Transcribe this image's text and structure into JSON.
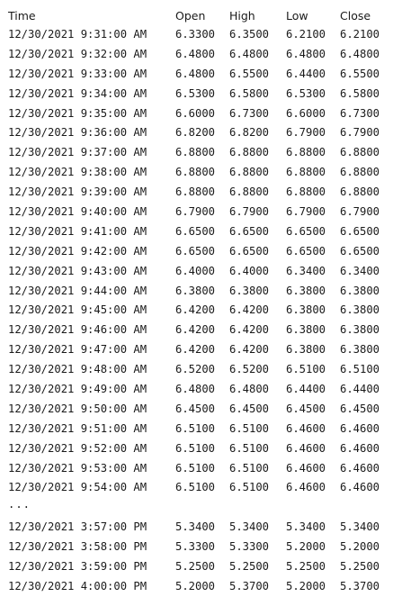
{
  "headers": [
    "Time",
    "Open",
    "High",
    "Low",
    "Close"
  ],
  "rows_top": [
    [
      "12/30/2021 9:31:00 AM",
      "6.3300",
      "6.3500",
      "6.2100",
      "6.2100"
    ],
    [
      "12/30/2021 9:32:00 AM",
      "6.4800",
      "6.4800",
      "6.4800",
      "6.4800"
    ],
    [
      "12/30/2021 9:33:00 AM",
      "6.4800",
      "6.5500",
      "6.4400",
      "6.5500"
    ],
    [
      "12/30/2021 9:34:00 AM",
      "6.5300",
      "6.5800",
      "6.5300",
      "6.5800"
    ],
    [
      "12/30/2021 9:35:00 AM",
      "6.6000",
      "6.7300",
      "6.6000",
      "6.7300"
    ],
    [
      "12/30/2021 9:36:00 AM",
      "6.8200",
      "6.8200",
      "6.7900",
      "6.7900"
    ],
    [
      "12/30/2021 9:37:00 AM",
      "6.8800",
      "6.8800",
      "6.8800",
      "6.8800"
    ],
    [
      "12/30/2021 9:38:00 AM",
      "6.8800",
      "6.8800",
      "6.8800",
      "6.8800"
    ],
    [
      "12/30/2021 9:39:00 AM",
      "6.8800",
      "6.8800",
      "6.8800",
      "6.8800"
    ],
    [
      "12/30/2021 9:40:00 AM",
      "6.7900",
      "6.7900",
      "6.7900",
      "6.7900"
    ],
    [
      "12/30/2021 9:41:00 AM",
      "6.6500",
      "6.6500",
      "6.6500",
      "6.6500"
    ],
    [
      "12/30/2021 9:42:00 AM",
      "6.6500",
      "6.6500",
      "6.6500",
      "6.6500"
    ],
    [
      "12/30/2021 9:43:00 AM",
      "6.4000",
      "6.4000",
      "6.3400",
      "6.3400"
    ],
    [
      "12/30/2021 9:44:00 AM",
      "6.3800",
      "6.3800",
      "6.3800",
      "6.3800"
    ],
    [
      "12/30/2021 9:45:00 AM",
      "6.4200",
      "6.4200",
      "6.3800",
      "6.3800"
    ],
    [
      "12/30/2021 9:46:00 AM",
      "6.4200",
      "6.4200",
      "6.3800",
      "6.3800"
    ],
    [
      "12/30/2021 9:47:00 AM",
      "6.4200",
      "6.4200",
      "6.3800",
      "6.3800"
    ],
    [
      "12/30/2021 9:48:00 AM",
      "6.5200",
      "6.5200",
      "6.5100",
      "6.5100"
    ],
    [
      "12/30/2021 9:49:00 AM",
      "6.4800",
      "6.4800",
      "6.4400",
      "6.4400"
    ],
    [
      "12/30/2021 9:50:00 AM",
      "6.4500",
      "6.4500",
      "6.4500",
      "6.4500"
    ],
    [
      "12/30/2021 9:51:00 AM",
      "6.5100",
      "6.5100",
      "6.4600",
      "6.4600"
    ],
    [
      "12/30/2021 9:52:00 AM",
      "6.5100",
      "6.5100",
      "6.4600",
      "6.4600"
    ],
    [
      "12/30/2021 9:53:00 AM",
      "6.5100",
      "6.5100",
      "6.4600",
      "6.4600"
    ],
    [
      "12/30/2021 9:54:00 AM",
      "6.5100",
      "6.5100",
      "6.4600",
      "6.4600"
    ]
  ],
  "ellipsis": "...",
  "rows_bottom": [
    [
      "12/30/2021 3:57:00 PM",
      "5.3400",
      "5.3400",
      "5.3400",
      "5.3400"
    ],
    [
      "12/30/2021 3:58:00 PM",
      "5.3300",
      "5.3300",
      "5.2000",
      "5.2000"
    ],
    [
      "12/30/2021 3:59:00 PM",
      "5.2500",
      "5.2500",
      "5.2500",
      "5.2500"
    ],
    [
      "12/30/2021 4:00:00 PM",
      "5.2000",
      "5.3700",
      "5.2000",
      "5.3700"
    ]
  ]
}
